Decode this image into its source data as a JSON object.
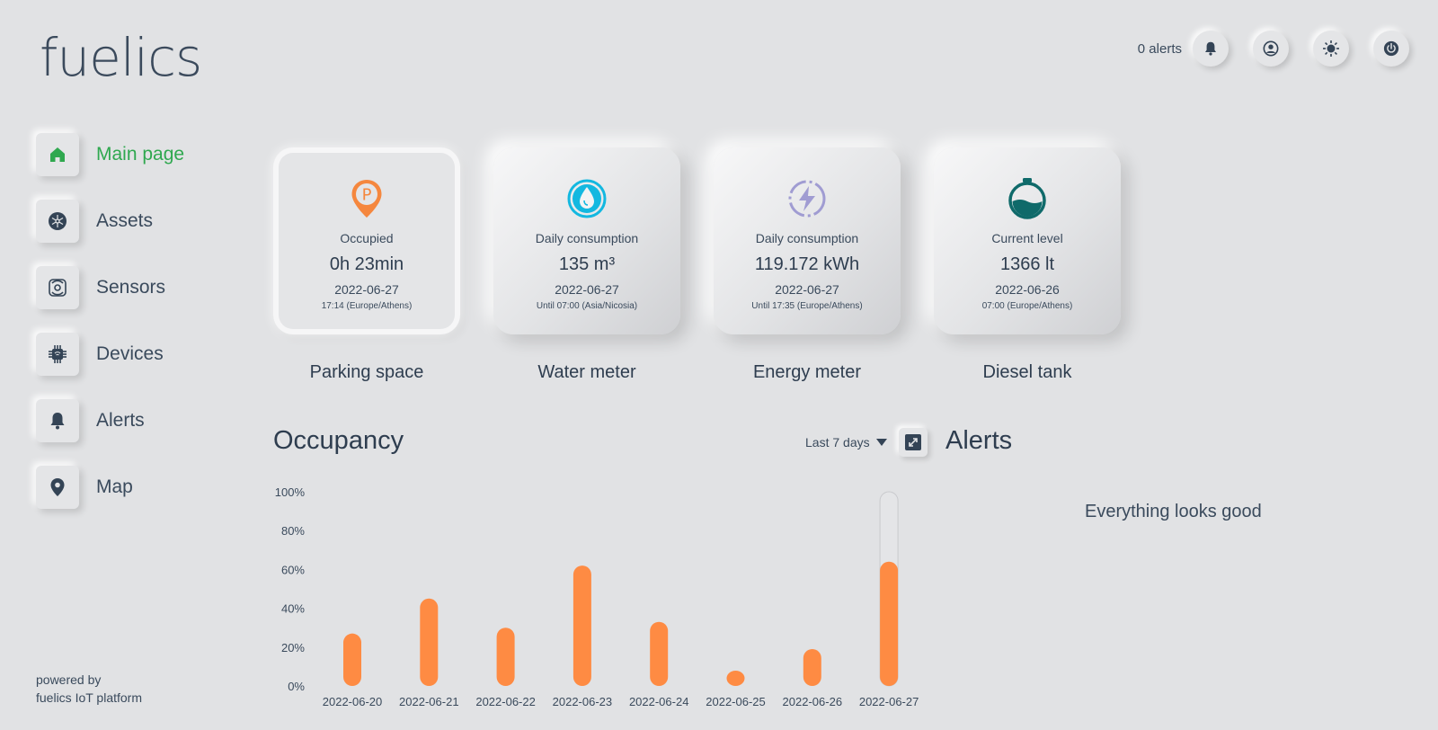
{
  "brand": {
    "logo": "fuelics"
  },
  "sidebar": {
    "items": [
      {
        "label": "Main page",
        "icon": "home-icon",
        "active": true
      },
      {
        "label": "Assets",
        "icon": "assets-icon"
      },
      {
        "label": "Sensors",
        "icon": "sensor-icon"
      },
      {
        "label": "Devices",
        "icon": "chip-icon"
      },
      {
        "label": "Alerts",
        "icon": "bell-icon"
      },
      {
        "label": "Map",
        "icon": "map-pin-icon"
      }
    ],
    "powered_line1": "powered by",
    "powered_line2": "fuelics IoT platform"
  },
  "header": {
    "alert_count": "0 alerts",
    "buttons": [
      "bell-icon",
      "user-icon",
      "brightness-icon",
      "power-icon"
    ]
  },
  "cards": [
    {
      "name": "Parking space",
      "label": "Occupied",
      "value": "0h 23min",
      "date": "2022-06-27",
      "time": "17:14 (Europe/Athens)",
      "icon": "parking-pin-icon",
      "icon_color": "#f5873e"
    },
    {
      "name": "Water meter",
      "label": "Daily consumption",
      "value": "135 m³",
      "date": "2022-06-27",
      "time": "Until 07:00 (Asia/Nicosia)",
      "icon": "water-drop-icon",
      "icon_color": "#13b8e0"
    },
    {
      "name": "Energy meter",
      "label": "Daily consumption",
      "value": "119.172 kWh",
      "date": "2022-06-27",
      "time": "Until 17:35 (Europe/Athens)",
      "icon": "energy-icon",
      "icon_color": "#a09cd2"
    },
    {
      "name": "Diesel tank",
      "label": "Current level",
      "value": "1366 lt",
      "date": "2022-06-26",
      "time": "07:00 (Europe/Athens)",
      "icon": "tank-icon",
      "icon_color": "#0f6a6a"
    }
  ],
  "occupancy": {
    "title": "Occupancy",
    "range_label": "Last 7 days"
  },
  "alerts": {
    "title": "Alerts",
    "message": "Everything looks good"
  },
  "chart_data": {
    "type": "bar",
    "categories": [
      "2022-06-20",
      "2022-06-21",
      "2022-06-22",
      "2022-06-23",
      "2022-06-24",
      "2022-06-25",
      "2022-06-26",
      "2022-06-27"
    ],
    "values": [
      27,
      45,
      30,
      62,
      33,
      7,
      19,
      64
    ],
    "yticks": [
      "0%",
      "20%",
      "40%",
      "60%",
      "80%",
      "100%"
    ],
    "ylim": [
      0,
      100
    ],
    "bar_color": "#fe8b43",
    "highlight_index": 7
  }
}
